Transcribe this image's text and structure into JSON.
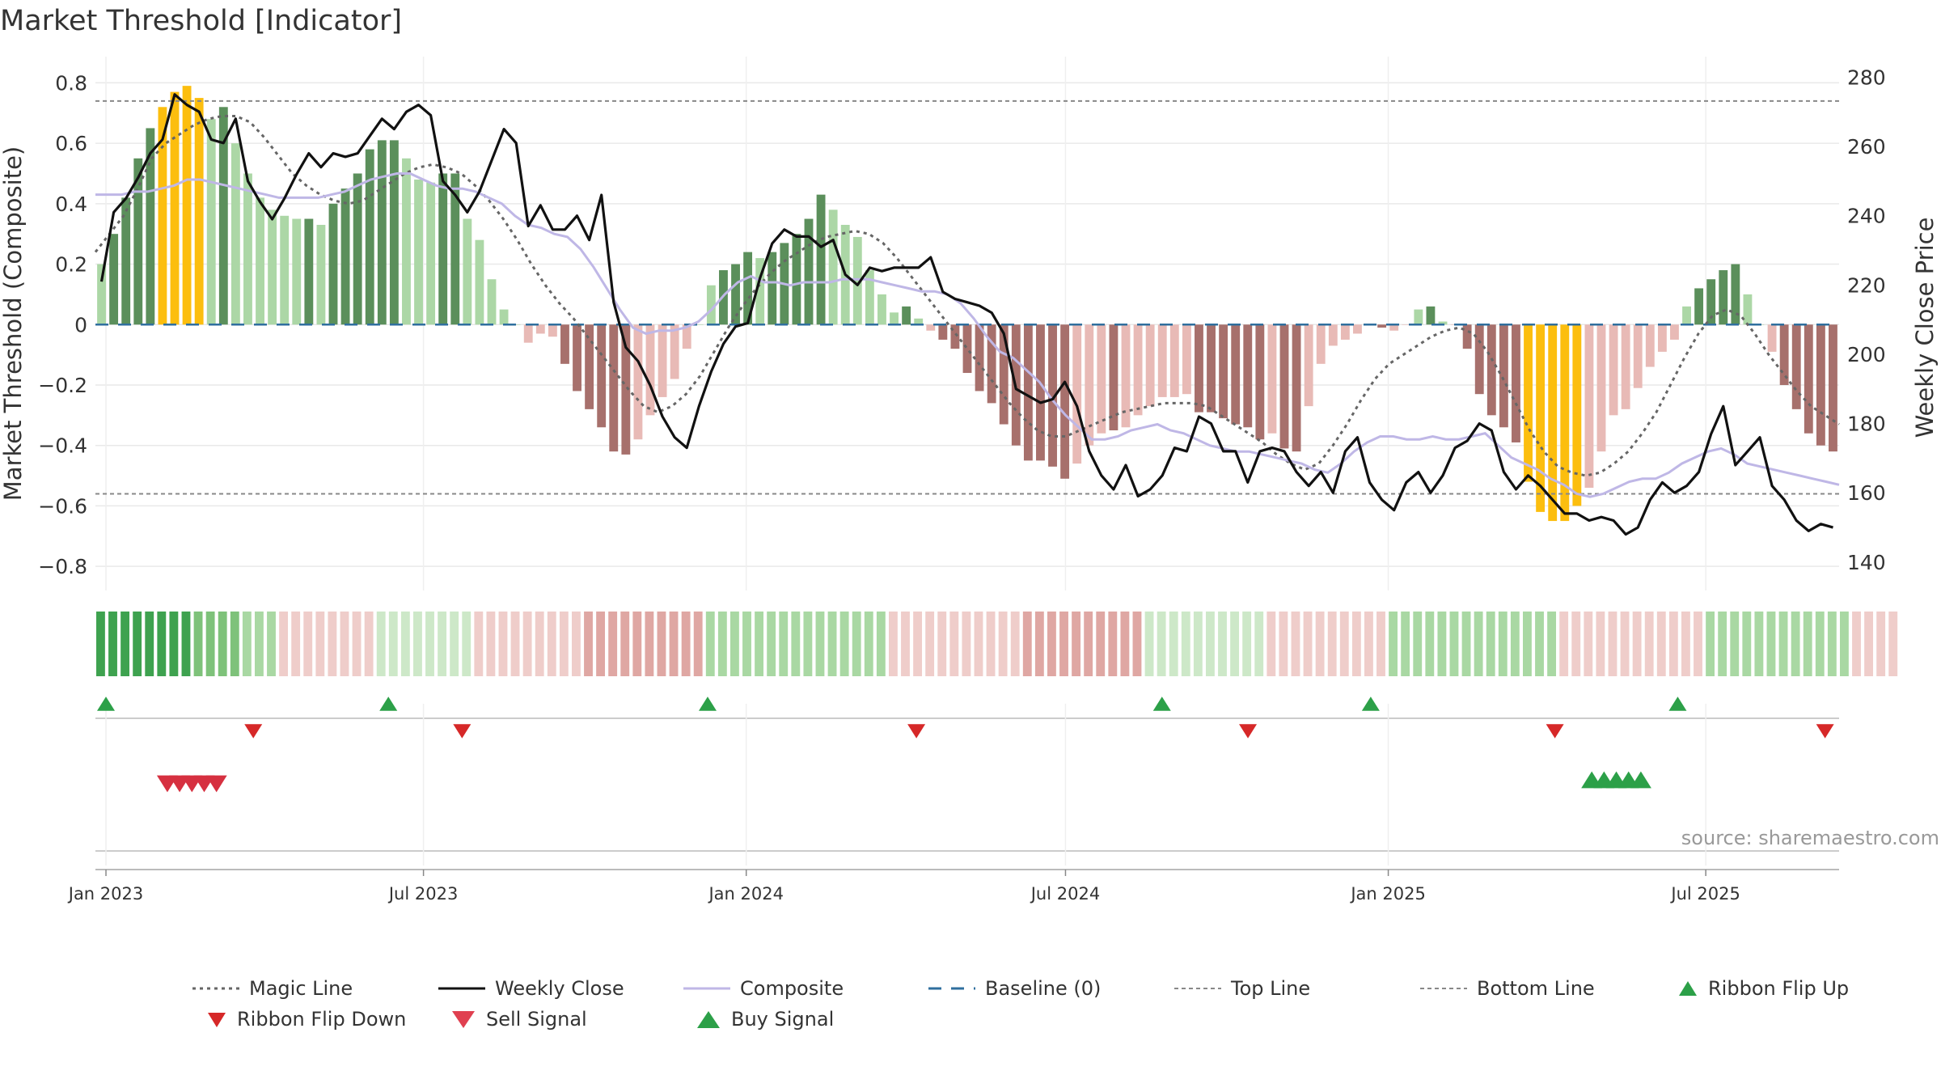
{
  "title": "Market Threshold [Indicator]",
  "source": "source: sharemaestro.com",
  "colors": {
    "bar_green_dark": "#5b8f5b",
    "bar_green_light": "#acd7a6",
    "bar_red_dark": "#a7706c",
    "bar_red_light": "#e8bab6",
    "bar_gold": "#fcbe0e",
    "weekly_close": "#111111",
    "composite": "#bfb7e6",
    "magic_line": "#666666",
    "baseline": "#2f6f9e",
    "threshold_line": "#888888",
    "signal_up": "#2ca048",
    "signal_down": "#d62828"
  },
  "chart_data": {
    "type": "bar",
    "title": "Market Threshold [Indicator]",
    "ylabel_left": "Market Threshold (Composite)",
    "ylabel_right": "Weekly Close Price",
    "ylim_left": [
      -0.88,
      0.86
    ],
    "ylim_right": [
      131.8,
      283.6
    ],
    "yticks_left": [
      0.8,
      0.6,
      0.4,
      0.2,
      0,
      -0.2,
      -0.4,
      -0.6,
      -0.8
    ],
    "yticks_left_labels": [
      "0.8",
      "0.6",
      "0.4",
      "0.2",
      "0",
      "−0.2",
      "−0.4",
      "−0.6",
      "−0.8"
    ],
    "yticks_right": [
      280,
      260,
      240,
      220,
      200,
      180,
      160,
      140
    ],
    "x_start": "2022-12-26",
    "x_end": "2025-09-15",
    "xticks": [
      {
        "date": "2023-01-01",
        "label": "Jan 2023"
      },
      {
        "date": "2023-07-01",
        "label": "Jul 2023"
      },
      {
        "date": "2024-01-01",
        "label": "Jan 2024"
      },
      {
        "date": "2024-07-01",
        "label": "Jul 2024"
      },
      {
        "date": "2025-01-01",
        "label": "Jan 2025"
      },
      {
        "date": "2025-07-01",
        "label": "Jul 2025"
      }
    ],
    "top_line": 0.74,
    "bottom_line": -0.56,
    "baseline": 0,
    "weeks": 143,
    "composite_bars": [
      0.2,
      0.3,
      0.42,
      0.55,
      0.65,
      0.72,
      0.77,
      0.79,
      0.75,
      0.68,
      0.72,
      0.6,
      0.5,
      0.42,
      0.38,
      0.36,
      0.35,
      0.35,
      0.33,
      0.4,
      0.45,
      0.5,
      0.58,
      0.61,
      0.61,
      0.55,
      0.48,
      0.47,
      0.5,
      0.5,
      0.35,
      0.28,
      0.15,
      0.05,
      0,
      -0.06,
      -0.03,
      -0.04,
      -0.13,
      -0.22,
      -0.28,
      -0.34,
      -0.42,
      -0.43,
      -0.38,
      -0.3,
      -0.24,
      -0.18,
      -0.08,
      0.0,
      0.13,
      0.18,
      0.2,
      0.24,
      0.22,
      0.24,
      0.27,
      0.3,
      0.35,
      0.43,
      0.38,
      0.33,
      0.29,
      0.18,
      0.1,
      0.04,
      0.06,
      0.02,
      -0.02,
      -0.05,
      -0.08,
      -0.16,
      -0.22,
      -0.26,
      -0.33,
      -0.4,
      -0.45,
      -0.45,
      -0.47,
      -0.51,
      -0.46,
      -0.4,
      -0.36,
      -0.35,
      -0.34,
      -0.3,
      -0.27,
      -0.24,
      -0.24,
      -0.23,
      -0.29,
      -0.29,
      -0.31,
      -0.33,
      -0.34,
      -0.38,
      -0.36,
      -0.41,
      -0.42,
      -0.27,
      -0.13,
      -0.07,
      -0.05,
      -0.03,
      0,
      -0.01,
      -0.02,
      0.0,
      0.05,
      0.06,
      0.01,
      0,
      -0.08,
      -0.23,
      -0.3,
      -0.34,
      -0.39,
      -0.52,
      -0.62,
      -0.65,
      -0.65,
      -0.6,
      -0.54,
      -0.42,
      -0.3,
      -0.28,
      -0.21,
      -0.14,
      -0.09,
      -0.05,
      0.06,
      0.12,
      0.15,
      0.18,
      0.2,
      0.1,
      0.0,
      -0.09,
      -0.2,
      -0.28,
      -0.36,
      -0.4,
      -0.42
    ],
    "bar_shade": [
      "gl",
      "gd",
      "gd",
      "gd",
      "gd",
      "y",
      "y",
      "y",
      "y",
      "gl",
      "gd",
      "gl",
      "gl",
      "gl",
      "gl",
      "gl",
      "gl",
      "gd",
      "gl",
      "gd",
      "gd",
      "gd",
      "gd",
      "gd",
      "gd",
      "gl",
      "gl",
      "gl",
      "gd",
      "gd",
      "gl",
      "gl",
      "gl",
      "gl",
      "gl",
      "rl",
      "rl",
      "rl",
      "rd",
      "rd",
      "rd",
      "rd",
      "rd",
      "rd",
      "rl",
      "rl",
      "rl",
      "rl",
      "rl",
      "gl",
      "gl",
      "gd",
      "gd",
      "gd",
      "gl",
      "gd",
      "gd",
      "gd",
      "gd",
      "gd",
      "gl",
      "gl",
      "gl",
      "gl",
      "gl",
      "gl",
      "gd",
      "gl",
      "rl",
      "rd",
      "rd",
      "rd",
      "rd",
      "rd",
      "rd",
      "rd",
      "rd",
      "rd",
      "rd",
      "rd",
      "rl",
      "rl",
      "rl",
      "rd",
      "rl",
      "rl",
      "rl",
      "rl",
      "rl",
      "rl",
      "rd",
      "rd",
      "rd",
      "rd",
      "rd",
      "rd",
      "rl",
      "rd",
      "rd",
      "rl",
      "rl",
      "rl",
      "rl",
      "rl",
      "rl",
      "rd",
      "rl",
      "rl",
      "gl",
      "gd",
      "gl",
      "rl",
      "rd",
      "rd",
      "rd",
      "rd",
      "rd",
      "y",
      "y",
      "y",
      "y",
      "y",
      "rl",
      "rl",
      "rl",
      "rl",
      "rl",
      "rl",
      "rl",
      "rl",
      "gl",
      "gd",
      "gd",
      "gd",
      "gd",
      "gl",
      "gl",
      "rl",
      "rd",
      "rd",
      "rd",
      "rd",
      "rd"
    ],
    "series": [
      {
        "name": "Weekly Close",
        "axis": "right",
        "values": [
          221,
          241,
          245,
          251,
          258,
          262,
          275,
          272,
          270,
          262,
          261,
          268,
          250,
          244,
          239,
          245,
          252,
          258,
          254,
          258,
          257,
          258,
          263,
          268,
          265,
          270,
          272,
          269,
          250,
          246,
          241,
          247,
          256,
          265,
          261,
          237,
          243,
          236,
          236,
          240,
          233,
          246,
          215,
          202,
          198,
          191,
          182,
          176,
          173,
          185,
          195,
          203,
          208,
          209,
          222,
          232,
          236,
          234,
          234,
          231,
          233,
          223,
          220,
          225,
          224,
          225,
          225,
          225,
          228,
          218,
          216,
          215,
          214,
          212,
          206,
          190,
          188,
          186,
          187,
          192,
          185,
          172,
          165,
          161,
          168,
          159,
          161,
          165,
          173,
          172,
          182,
          180,
          172,
          172,
          163,
          172,
          173,
          172,
          166,
          162,
          166,
          160,
          172,
          176,
          163,
          158,
          155,
          163,
          166,
          160,
          165,
          173,
          175,
          180,
          178,
          166,
          161,
          165,
          162,
          158,
          154,
          154,
          152,
          153,
          152,
          148,
          150,
          158,
          163,
          160,
          162,
          166,
          177,
          185,
          168,
          172,
          176,
          162,
          158,
          152,
          149,
          151,
          150
        ],
        "values_dense": true
      },
      {
        "name": "Composite",
        "axis": "left",
        "values_smooth": true
      },
      {
        "name": "Magic Line",
        "axis": "left",
        "values_smooth": true
      }
    ],
    "composite_line": [
      0.43,
      0.43,
      0.43,
      0.44,
      0.44,
      0.45,
      0.46,
      0.48,
      0.48,
      0.47,
      0.46,
      0.45,
      0.44,
      0.43,
      0.42,
      0.42,
      0.42,
      0.42,
      0.43,
      0.44,
      0.46,
      0.48,
      0.49,
      0.5,
      0.5,
      0.48,
      0.46,
      0.45,
      0.45,
      0.44,
      0.42,
      0.4,
      0.36,
      0.33,
      0.32,
      0.3,
      0.29,
      0.25,
      0.19,
      0.12,
      0.05,
      -0.01,
      -0.03,
      -0.02,
      -0.02,
      -0.01,
      0.01,
      0.05,
      0.1,
      0.14,
      0.16,
      0.14,
      0.14,
      0.13,
      0.14,
      0.14,
      0.14,
      0.15,
      0.15,
      0.15,
      0.14,
      0.13,
      0.12,
      0.11,
      0.11,
      0.1,
      0.07,
      0.02,
      -0.04,
      -0.09,
      -0.11,
      -0.15,
      -0.19,
      -0.25,
      -0.3,
      -0.34,
      -0.38,
      -0.38,
      -0.37,
      -0.35,
      -0.34,
      -0.33,
      -0.35,
      -0.36,
      -0.38,
      -0.4,
      -0.41,
      -0.42,
      -0.42,
      -0.43,
      -0.44,
      -0.45,
      -0.46,
      -0.48,
      -0.49,
      -0.46,
      -0.42,
      -0.39,
      -0.37,
      -0.37,
      -0.38,
      -0.38,
      -0.37,
      -0.38,
      -0.38,
      -0.37,
      -0.36,
      -0.4,
      -0.44,
      -0.46,
      -0.48,
      -0.51,
      -0.53,
      -0.56,
      -0.57,
      -0.56,
      -0.54,
      -0.52,
      -0.51,
      -0.51,
      -0.49,
      -0.46,
      -0.44,
      -0.42,
      -0.41,
      -0.43,
      -0.46,
      -0.47,
      -0.48,
      -0.49,
      -0.5,
      -0.51,
      -0.52,
      -0.53
    ],
    "magic_line": [
      0.24,
      0.3,
      0.36,
      0.45,
      0.55,
      0.6,
      0.63,
      0.66,
      0.68,
      0.69,
      0.69,
      0.67,
      0.62,
      0.56,
      0.5,
      0.46,
      0.43,
      0.41,
      0.4,
      0.41,
      0.44,
      0.47,
      0.5,
      0.52,
      0.53,
      0.52,
      0.5,
      0.46,
      0.41,
      0.35,
      0.28,
      0.2,
      0.13,
      0.07,
      0.02,
      -0.04,
      -0.1,
      -0.16,
      -0.22,
      -0.27,
      -0.29,
      -0.27,
      -0.23,
      -0.17,
      -0.09,
      -0.01,
      0.06,
      0.12,
      0.17,
      0.21,
      0.24,
      0.27,
      0.29,
      0.3,
      0.31,
      0.3,
      0.27,
      0.22,
      0.16,
      0.1,
      0.04,
      -0.02,
      -0.08,
      -0.14,
      -0.2,
      -0.26,
      -0.31,
      -0.35,
      -0.37,
      -0.37,
      -0.35,
      -0.33,
      -0.31,
      -0.29,
      -0.28,
      -0.27,
      -0.26,
      -0.26,
      -0.26,
      -0.27,
      -0.3,
      -0.33,
      -0.36,
      -0.39,
      -0.43,
      -0.46,
      -0.48,
      -0.46,
      -0.4,
      -0.33,
      -0.25,
      -0.18,
      -0.13,
      -0.1,
      -0.07,
      -0.04,
      -0.02,
      -0.01,
      -0.03,
      -0.09,
      -0.17,
      -0.26,
      -0.35,
      -0.42,
      -0.47,
      -0.49,
      -0.5,
      -0.49,
      -0.46,
      -0.42,
      -0.36,
      -0.29,
      -0.2,
      -0.11,
      -0.03,
      0.03,
      0.05,
      0.03,
      -0.03,
      -0.1,
      -0.16,
      -0.22,
      -0.27,
      -0.3,
      -0.33
    ],
    "ribbon_cells": 143,
    "ribbon_shades": [
      "g3",
      "g3",
      "g3",
      "g3",
      "g3",
      "g3",
      "g3",
      "g3",
      "g2",
      "g2",
      "g2",
      "g2",
      "g1",
      "g1",
      "g1",
      "r1",
      "r1",
      "r1",
      "r1",
      "r1",
      "r1",
      "r1",
      "r1",
      "g0",
      "g0",
      "g0",
      "g0",
      "g0",
      "g0",
      "g0",
      "g0",
      "r1",
      "r1",
      "r1",
      "r1",
      "r1",
      "r1",
      "r1",
      "r1",
      "r1",
      "r2",
      "r2",
      "r2",
      "r2",
      "r2",
      "r2",
      "r2",
      "r2",
      "r2",
      "r2",
      "g1",
      "g1",
      "g1",
      "g1",
      "g1",
      "g1",
      "g1",
      "g1",
      "g1",
      "g1",
      "g1",
      "g1",
      "g1",
      "g1",
      "g1",
      "r1",
      "r1",
      "r1",
      "r1",
      "r1",
      "r1",
      "r1",
      "r1",
      "r1",
      "r1",
      "r1",
      "r2",
      "r2",
      "r2",
      "r2",
      "r2",
      "r2",
      "r2",
      "r2",
      "r2",
      "r2",
      "g0",
      "g0",
      "g0",
      "g0",
      "g0",
      "g0",
      "g0",
      "g0",
      "g0",
      "g0",
      "r1",
      "r1",
      "r1",
      "r1",
      "r1",
      "r1",
      "r1",
      "r1",
      "r1",
      "r1",
      "g1",
      "g1",
      "g1",
      "g1",
      "g1",
      "g1",
      "g1",
      "g1",
      "g1",
      "g1",
      "g1",
      "g1",
      "g1",
      "g1",
      "r1",
      "r1",
      "r1",
      "r1",
      "r1",
      "r1",
      "r1",
      "r1",
      "r1",
      "r1",
      "r1",
      "r1",
      "g1",
      "g1",
      "g1",
      "g1",
      "g1",
      "g1",
      "g1",
      "g1",
      "g1",
      "g1",
      "g1",
      "g1",
      "r1",
      "r1",
      "r1",
      "r1"
    ],
    "ribbon_flip_up": [
      "2023-01-01",
      "2023-06-11",
      "2023-12-10",
      "2024-08-25",
      "2024-12-22",
      "2025-06-15"
    ],
    "ribbon_flip_down": [
      "2023-03-26",
      "2023-07-23",
      "2024-04-07",
      "2024-10-13",
      "2025-04-06",
      "2025-09-07"
    ],
    "sell_signals": [
      "2023-02-05",
      "2023-02-12",
      "2023-02-19",
      "2023-02-26",
      "2023-03-05"
    ],
    "buy_signals": [
      "2025-04-27",
      "2025-05-04",
      "2025-05-11",
      "2025-05-18",
      "2025-05-25"
    ]
  },
  "legend": [
    {
      "label": "Magic Line",
      "icon": "dotted-line"
    },
    {
      "label": "Weekly Close",
      "icon": "solid-line"
    },
    {
      "label": "Composite",
      "icon": "lavender-line"
    },
    {
      "label": "Baseline (0)",
      "icon": "dashed-line"
    },
    {
      "label": "Top Line",
      "icon": "gray-dotted-line"
    },
    {
      "label": "Bottom Line",
      "icon": "gray-dotted-line"
    },
    {
      "label": "Ribbon Flip Up",
      "icon": "triangle-up"
    },
    {
      "label": "Ribbon Flip Down",
      "icon": "triangle-down"
    },
    {
      "label": "Sell Signal",
      "icon": "triangle-down"
    },
    {
      "label": "Buy Signal",
      "icon": "triangle-up"
    }
  ]
}
